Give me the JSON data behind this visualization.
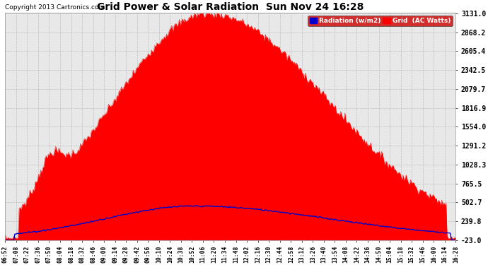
{
  "title": "Grid Power & Solar Radiation  Sun Nov 24 16:28",
  "copyright": "Copyright 2013 Cartronics.com",
  "background_color": "#ffffff",
  "plot_bg_color": "#e8e8e8",
  "yticks": [
    3131.0,
    2868.2,
    2605.4,
    2342.5,
    2079.7,
    1816.9,
    1554.0,
    1291.2,
    1028.3,
    765.5,
    502.7,
    239.8,
    -23.0
  ],
  "ymin": -23.0,
  "ymax": 3131.0,
  "legend_radiation_label": "Radiation (w/m2)",
  "legend_grid_label": "Grid  (AC Watts)",
  "radiation_color": "#0000ff",
  "solar_fill_color": "#ff0000",
  "solar_line_color": "#ff0000",
  "grid_line_color": "#0000cd",
  "xtick_labels": [
    "06:52",
    "07:08",
    "07:22",
    "07:36",
    "07:50",
    "08:04",
    "08:18",
    "08:32",
    "08:46",
    "09:00",
    "09:14",
    "09:28",
    "09:42",
    "09:56",
    "10:10",
    "10:24",
    "10:38",
    "10:52",
    "11:06",
    "11:20",
    "11:34",
    "11:48",
    "12:02",
    "12:16",
    "12:30",
    "12:44",
    "12:58",
    "13:12",
    "13:26",
    "13:40",
    "13:54",
    "14:08",
    "14:22",
    "14:36",
    "14:50",
    "15:04",
    "15:18",
    "15:32",
    "15:46",
    "16:00",
    "16:14",
    "16:28"
  ],
  "n_points": 420
}
